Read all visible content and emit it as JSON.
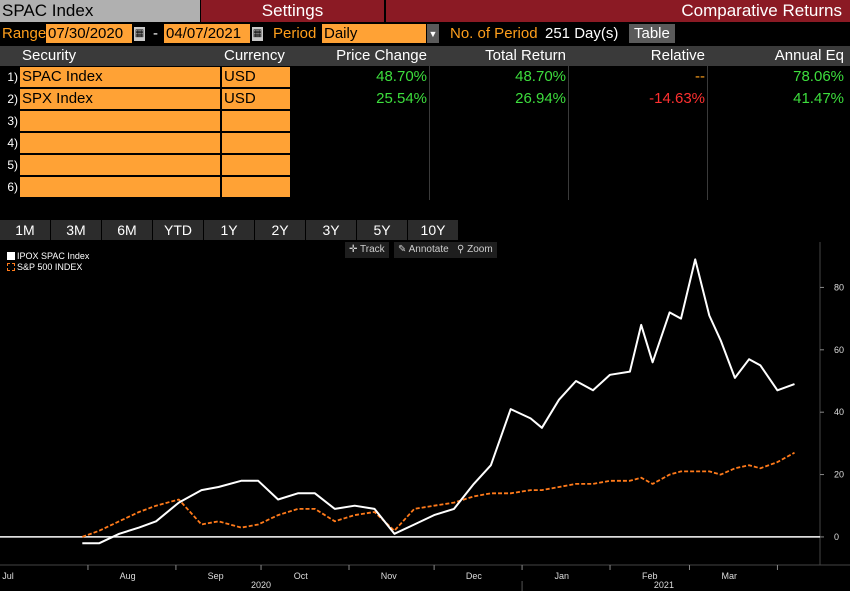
{
  "header": {
    "title": "SPAC Index",
    "settings": "Settings",
    "comparative": "Comparative Returns"
  },
  "params": {
    "range_label": "Range",
    "start_date": "07/30/2020",
    "dash": "-",
    "end_date": "04/07/2021",
    "period_label": "Period",
    "period_value": "Daily",
    "periods_label": "No. of Period",
    "periods_value": "251 Day(s)",
    "table_button": "Table",
    "calendar_icon": "calendar-icon",
    "dropdown_icon": "chevron-down-icon"
  },
  "table": {
    "headers": [
      "Security",
      "Currency",
      "Price Change",
      "Total Return",
      "Relative",
      "Annual Eq"
    ],
    "rows": [
      {
        "num": "1)",
        "security": "SPAC Index",
        "currency": "USD",
        "price_change": "48.70%",
        "total_return": "48.70%",
        "relative": "--",
        "annual_eq": "78.06%"
      },
      {
        "num": "2)",
        "security": "SPX Index",
        "currency": "USD",
        "price_change": "25.54%",
        "total_return": "26.94%",
        "relative": "-14.63%",
        "annual_eq": "41.47%"
      },
      {
        "num": "3)",
        "security": "",
        "currency": "",
        "price_change": "",
        "total_return": "",
        "relative": "",
        "annual_eq": ""
      },
      {
        "num": "4)",
        "security": "",
        "currency": "",
        "price_change": "",
        "total_return": "",
        "relative": "",
        "annual_eq": ""
      },
      {
        "num": "5)",
        "security": "",
        "currency": "",
        "price_change": "",
        "total_return": "",
        "relative": "",
        "annual_eq": ""
      },
      {
        "num": "6)",
        "security": "",
        "currency": "",
        "price_change": "",
        "total_return": "",
        "relative": "",
        "annual_eq": ""
      }
    ]
  },
  "period_buttons": [
    "1M",
    "3M",
    "6M",
    "YTD",
    "1Y",
    "2Y",
    "3Y",
    "5Y",
    "10Y"
  ],
  "chart_tools": {
    "track": "Track",
    "annotate": "Annotate",
    "zoom": "Zoom",
    "track_icon": "crosshair-icon",
    "annotate_icon": "pencil-icon",
    "zoom_icon": "magnifier-icon"
  },
  "colors": {
    "accent_orange": "#ffa235",
    "header_red": "#8b1a24",
    "positive_green": "#3dde3d",
    "negative_red": "#ff3030",
    "spac_line": "#ffffff",
    "spx_line": "#ff7a1a"
  },
  "chart_data": {
    "type": "line",
    "title": "",
    "xlabel": "",
    "ylabel": "",
    "ylim": [
      -9,
      92
    ],
    "yticks": [
      0,
      20,
      40,
      60,
      80
    ],
    "x_ticks": [
      "Jul",
      "Aug",
      "Sep",
      "Oct",
      "Nov",
      "Dec",
      "Jan",
      "Feb",
      "Mar"
    ],
    "x_year_labels": [
      "2020",
      "2021"
    ],
    "zero_line": true,
    "legend_position": "top-left",
    "series": [
      {
        "name": "IPOX SPAC Index",
        "color": "#ffffff",
        "style": "solid",
        "points": [
          [
            "2020-07-30",
            -2
          ],
          [
            "2020-08-05",
            -2
          ],
          [
            "2020-08-12",
            1
          ],
          [
            "2020-08-19",
            3
          ],
          [
            "2020-08-25",
            5
          ],
          [
            "2020-09-02",
            11
          ],
          [
            "2020-09-10",
            15
          ],
          [
            "2020-09-16",
            16
          ],
          [
            "2020-09-24",
            18
          ],
          [
            "2020-09-30",
            18
          ],
          [
            "2020-10-07",
            12
          ],
          [
            "2020-10-14",
            14
          ],
          [
            "2020-10-20",
            14
          ],
          [
            "2020-10-27",
            9
          ],
          [
            "2020-11-03",
            10
          ],
          [
            "2020-11-10",
            9
          ],
          [
            "2020-11-17",
            1
          ],
          [
            "2020-11-24",
            4
          ],
          [
            "2020-12-01",
            7
          ],
          [
            "2020-12-08",
            9
          ],
          [
            "2020-12-15",
            17
          ],
          [
            "2020-12-21",
            23
          ],
          [
            "2020-12-28",
            41
          ],
          [
            "2021-01-04",
            38
          ],
          [
            "2021-01-08",
            35
          ],
          [
            "2021-01-14",
            44
          ],
          [
            "2021-01-20",
            50
          ],
          [
            "2021-01-26",
            47
          ],
          [
            "2021-02-01",
            52
          ],
          [
            "2021-02-08",
            53
          ],
          [
            "2021-02-12",
            68
          ],
          [
            "2021-02-16",
            56
          ],
          [
            "2021-02-22",
            72
          ],
          [
            "2021-02-26",
            70
          ],
          [
            "2021-03-03",
            89
          ],
          [
            "2021-03-08",
            71
          ],
          [
            "2021-03-12",
            63
          ],
          [
            "2021-03-17",
            51
          ],
          [
            "2021-03-22",
            57
          ],
          [
            "2021-03-26",
            55
          ],
          [
            "2021-04-01",
            47
          ],
          [
            "2021-04-07",
            49
          ]
        ]
      },
      {
        "name": "S&P 500 INDEX",
        "color": "#ff7a1a",
        "style": "dashed",
        "points": [
          [
            "2020-07-30",
            0
          ],
          [
            "2020-08-05",
            2
          ],
          [
            "2020-08-12",
            5
          ],
          [
            "2020-08-19",
            8
          ],
          [
            "2020-08-25",
            10
          ],
          [
            "2020-09-02",
            12
          ],
          [
            "2020-09-10",
            4
          ],
          [
            "2020-09-16",
            5
          ],
          [
            "2020-09-24",
            3
          ],
          [
            "2020-09-30",
            4
          ],
          [
            "2020-10-07",
            7
          ],
          [
            "2020-10-14",
            9
          ],
          [
            "2020-10-20",
            9
          ],
          [
            "2020-10-27",
            5
          ],
          [
            "2020-11-03",
            7
          ],
          [
            "2020-11-10",
            8
          ],
          [
            "2020-11-17",
            2
          ],
          [
            "2020-11-24",
            9
          ],
          [
            "2020-12-01",
            10
          ],
          [
            "2020-12-08",
            11
          ],
          [
            "2020-12-15",
            13
          ],
          [
            "2020-12-21",
            14
          ],
          [
            "2020-12-28",
            14
          ],
          [
            "2021-01-04",
            15
          ],
          [
            "2021-01-08",
            15
          ],
          [
            "2021-01-14",
            16
          ],
          [
            "2021-01-20",
            17
          ],
          [
            "2021-01-26",
            17
          ],
          [
            "2021-02-01",
            18
          ],
          [
            "2021-02-08",
            18
          ],
          [
            "2021-02-12",
            19
          ],
          [
            "2021-02-16",
            17
          ],
          [
            "2021-02-22",
            20
          ],
          [
            "2021-02-26",
            21
          ],
          [
            "2021-03-03",
            21
          ],
          [
            "2021-03-08",
            21
          ],
          [
            "2021-03-12",
            20
          ],
          [
            "2021-03-17",
            22
          ],
          [
            "2021-03-22",
            23
          ],
          [
            "2021-03-26",
            22
          ],
          [
            "2021-04-01",
            24
          ],
          [
            "2021-04-07",
            27
          ]
        ]
      }
    ]
  }
}
